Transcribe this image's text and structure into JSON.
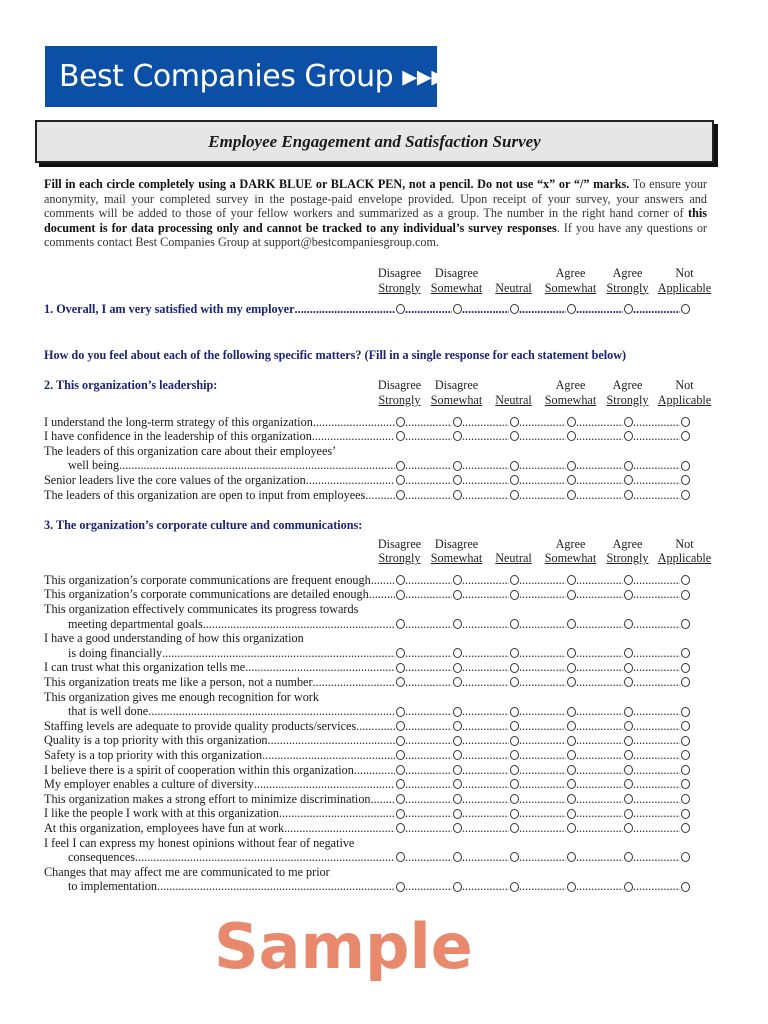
{
  "logo": {
    "text": "Best Companies Group",
    "color": "#0b4fa6"
  },
  "title": "Employee Engagement and Satisfaction Survey",
  "intro": {
    "bold1": "Fill in each circle completely using a DARK BLUE or BLACK PEN, not a pencil.  Do not use “x” or “/” marks.",
    "text1": " To ensure your anonymity, mail your completed survey in the postage-paid envelope provided. Upon receipt of your survey, your answers and comments will be added to those of your fellow workers and summarized as a group. The number in the right hand corner of ",
    "bold2": "this document is for data processing only and cannot be tracked to any individual’s survey responses",
    "text2": ". If you have any questions or comments contact Best Companies Group at support@bestcompaniesgroup.com."
  },
  "scale": [
    {
      "top": "Disagree",
      "bottom": "Strongly"
    },
    {
      "top": "Disagree",
      "bottom": "Somewhat"
    },
    {
      "top": "",
      "bottom": "Neutral"
    },
    {
      "top": "Agree",
      "bottom": "Somewhat"
    },
    {
      "top": "Agree",
      "bottom": "Strongly"
    },
    {
      "top": "Not",
      "bottom": "Applicable"
    }
  ],
  "q1": "1.   Overall, I am very satisfied with my employer",
  "instruction": "How do you feel about each of the following specific matters? (Fill in a single response for each statement below)",
  "section2": {
    "heading": "2.  This organization’s leadership:",
    "items": [
      {
        "line1": "I understand the long-term strategy of this organization"
      },
      {
        "line1": "I have confidence in the leadership of this organization"
      },
      {
        "line1": "The leaders of this organization care about their employees’",
        "line2": "well being"
      },
      {
        "line1": "Senior leaders live the core values of the organization"
      },
      {
        "line1": "The leaders of this organization are open to input from employees"
      }
    ]
  },
  "section3": {
    "heading": "3.  The organization’s corporate culture and communications:",
    "items": [
      {
        "line1": "This organization’s corporate communications are frequent enough"
      },
      {
        "line1": "This organization’s corporate communications are detailed enough"
      },
      {
        "line1": "This organization effectively communicates its progress towards",
        "line2": "meeting departmental goals"
      },
      {
        "line1": "I have a good understanding of how this organization",
        "line2": "is doing financially"
      },
      {
        "line1": "I can trust what this organization tells me"
      },
      {
        "line1": "This organization treats me like a person, not a number"
      },
      {
        "line1": "This organization gives me enough recognition for work",
        "line2": "that is well done"
      },
      {
        "line1": "Staffing levels are adequate to provide quality products/services"
      },
      {
        "line1": "Quality is a top priority with this organization"
      },
      {
        "line1": "Safety is a top priority with this organization"
      },
      {
        "line1": "I believe there is a spirit of cooperation within this organization"
      },
      {
        "line1": "My employer enables a culture of diversity"
      },
      {
        "line1": "This organization makes a strong effort to minimize discrimination"
      },
      {
        "line1": "I like the people I work with at this organization"
      },
      {
        "line1": "At this organization, employees have fun at work."
      },
      {
        "line1": "I feel I can express my honest opinions without fear of negative",
        "line2": "consequences."
      },
      {
        "line1": "Changes that may affect me are communicated to me prior",
        "line2": "to implementation"
      }
    ]
  },
  "watermark": "Sample"
}
